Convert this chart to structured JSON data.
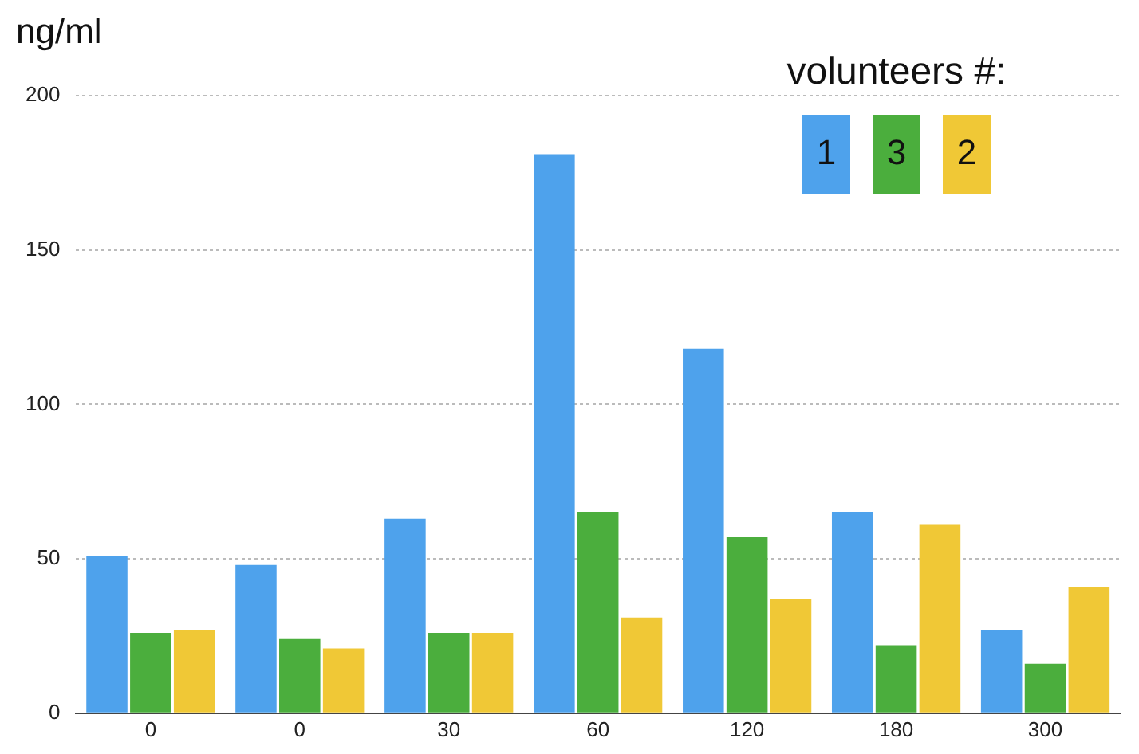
{
  "chart_data": {
    "type": "bar",
    "ylabel": "ng/ml",
    "legend_title": "volunteers #:",
    "categories": [
      "0",
      "0",
      "30",
      "60",
      "120",
      "180",
      "300"
    ],
    "series": [
      {
        "name": "1",
        "color": "#4ea2ec",
        "values": [
          51,
          48,
          63,
          181,
          118,
          65,
          27
        ]
      },
      {
        "name": "3",
        "color": "#4bae3d",
        "values": [
          26,
          24,
          26,
          65,
          57,
          22,
          16
        ]
      },
      {
        "name": "2",
        "color": "#f0c836",
        "values": [
          27,
          21,
          26,
          31,
          37,
          61,
          41
        ]
      }
    ],
    "ylim": [
      0,
      200
    ],
    "yticks": [
      0,
      50,
      100,
      150,
      200
    ],
    "grid": "y",
    "legend": "top right"
  }
}
